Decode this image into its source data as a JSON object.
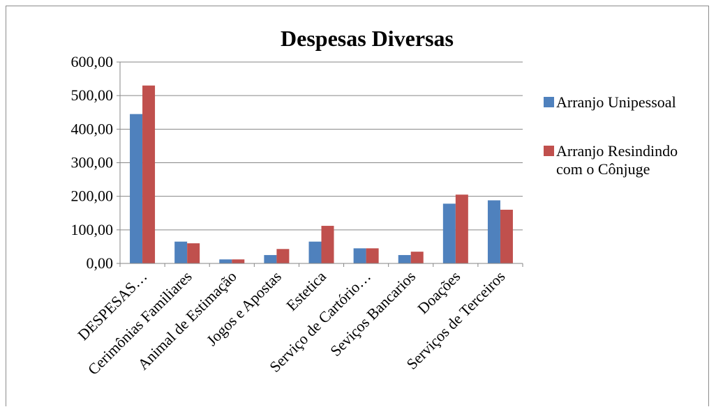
{
  "chart_data": {
    "type": "bar",
    "title": "Despesas Diversas",
    "categories": [
      "DESPESAS…",
      "Cerimônias Familiares",
      "Animal de Estimação",
      "Jogos e Apostas",
      "Estetica",
      "Serviço de Cartório…",
      "Seviços Bancarios",
      "Doações",
      "Serviços de Terceiros"
    ],
    "series": [
      {
        "name": "Arranjo Unipessoal",
        "color": "#4F81BD",
        "values": [
          445,
          65,
          12,
          25,
          65,
          45,
          25,
          178,
          188
        ]
      },
      {
        "name": "Arranjo Resindindo com o Cônjuge",
        "color": "#C0504D",
        "values": [
          530,
          60,
          12,
          43,
          112,
          45,
          35,
          205,
          160
        ]
      }
    ],
    "yticks": [
      "0,00",
      "100,00",
      "200,00",
      "300,00",
      "400,00",
      "500,00",
      "600,00"
    ],
    "ylim": [
      0,
      600
    ],
    "grid": true,
    "legend_position": "right"
  }
}
